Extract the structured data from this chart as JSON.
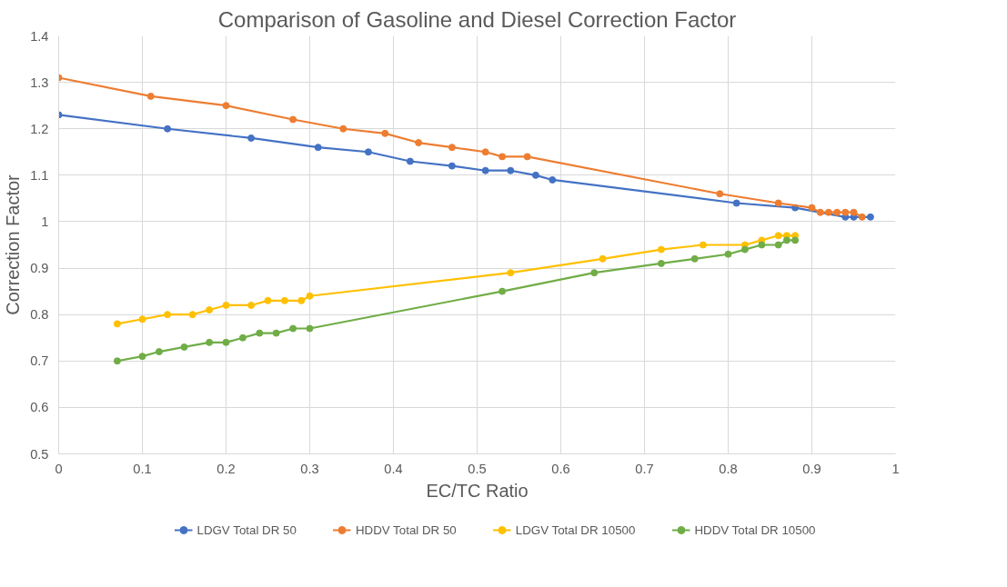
{
  "chart_data": {
    "type": "line",
    "title": "Comparison of Gasoline and Diesel Correction Factor",
    "xlabel": "EC/TC Ratio",
    "ylabel": "Correction Factor",
    "xlim": [
      0,
      1
    ],
    "xticks": [
      0,
      0.1,
      0.2,
      0.3,
      0.4,
      0.5,
      0.6,
      0.7,
      0.8,
      0.9,
      1
    ],
    "ylim": [
      0.5,
      1.4
    ],
    "yticks": [
      0.5,
      0.6,
      0.7,
      0.8,
      0.9,
      1,
      1.1,
      1.2,
      1.3,
      1.4
    ],
    "grid": true,
    "legend": "bottom",
    "marker": "circle",
    "line_style": "solid",
    "series": [
      {
        "name": "LDGV Total DR 50",
        "color": "#4472c4",
        "x": [
          0,
          0.13,
          0.23,
          0.31,
          0.37,
          0.42,
          0.47,
          0.51,
          0.54,
          0.57,
          0.59,
          0.81,
          0.88,
          0.94,
          0.95,
          0.97
        ],
        "values": [
          1.23,
          1.2,
          1.18,
          1.16,
          1.15,
          1.13,
          1.12,
          1.11,
          1.11,
          1.1,
          1.09,
          1.04,
          1.03,
          1.01,
          1.01,
          1.01
        ]
      },
      {
        "name": "HDDV Total DR 50",
        "color": "#ed7d31",
        "x": [
          0,
          0.11,
          0.2,
          0.28,
          0.34,
          0.39,
          0.43,
          0.47,
          0.51,
          0.53,
          0.56,
          0.79,
          0.86,
          0.9,
          0.91,
          0.92,
          0.93,
          0.94,
          0.95,
          0.96
        ],
        "values": [
          1.31,
          1.27,
          1.25,
          1.22,
          1.2,
          1.19,
          1.17,
          1.16,
          1.15,
          1.14,
          1.14,
          1.06,
          1.04,
          1.03,
          1.02,
          1.02,
          1.02,
          1.02,
          1.02,
          1.01
        ]
      },
      {
        "name": "LDGV Total DR 10500",
        "color": "#ffc000",
        "x": [
          0.07,
          0.1,
          0.13,
          0.16,
          0.18,
          0.2,
          0.23,
          0.25,
          0.27,
          0.29,
          0.3,
          0.54,
          0.65,
          0.72,
          0.77,
          0.82,
          0.84,
          0.86,
          0.87,
          0.88
        ],
        "values": [
          0.78,
          0.79,
          0.8,
          0.8,
          0.81,
          0.82,
          0.82,
          0.83,
          0.83,
          0.83,
          0.84,
          0.89,
          0.92,
          0.94,
          0.95,
          0.95,
          0.96,
          0.97,
          0.97,
          0.97
        ]
      },
      {
        "name": "HDDV Total DR 10500",
        "color": "#70ad47",
        "x": [
          0.07,
          0.1,
          0.12,
          0.15,
          0.18,
          0.2,
          0.22,
          0.24,
          0.26,
          0.28,
          0.3,
          0.53,
          0.64,
          0.72,
          0.76,
          0.8,
          0.82,
          0.84,
          0.86,
          0.87,
          0.88
        ],
        "values": [
          0.7,
          0.71,
          0.72,
          0.73,
          0.74,
          0.74,
          0.75,
          0.76,
          0.76,
          0.77,
          0.77,
          0.85,
          0.89,
          0.91,
          0.92,
          0.93,
          0.94,
          0.95,
          0.95,
          0.96,
          0.96
        ]
      }
    ]
  }
}
